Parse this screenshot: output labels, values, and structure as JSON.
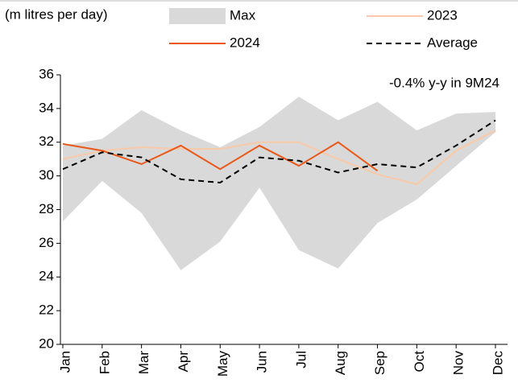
{
  "chart_data": {
    "type": "line",
    "unit_label": "(m litres per day)",
    "annotation": "-0.4% y-y in 9M24",
    "categories": [
      "Jan",
      "Feb",
      "Mar",
      "Apr",
      "May",
      "Jun",
      "Jul",
      "Aug",
      "Sep",
      "Oct",
      "Nov",
      "Dec"
    ],
    "ylim": [
      20,
      36
    ],
    "yticks": [
      20,
      22,
      24,
      26,
      28,
      30,
      32,
      34,
      36
    ],
    "band": {
      "name": "Max",
      "color": "#d9d9d9",
      "values": [
        31.8,
        32.2,
        33.9,
        32.7,
        31.7,
        32.9,
        34.7,
        33.3,
        34.4,
        32.7,
        33.7,
        33.8
      ],
      "low": [
        27.3,
        29.7,
        27.8,
        24.4,
        26.1,
        29.3,
        25.6,
        24.5,
        27.2,
        28.6,
        30.6,
        32.6
      ]
    },
    "series": [
      {
        "name": "2023",
        "color": "#f9c9a8",
        "dash": false,
        "values": [
          31.0,
          31.5,
          31.7,
          31.6,
          31.6,
          32.0,
          32.0,
          31.0,
          30.1,
          29.5,
          31.5,
          32.7
        ]
      },
      {
        "name": "2024",
        "color": "#e8591a",
        "dash": false,
        "values": [
          31.9,
          31.5,
          30.7,
          31.8,
          30.4,
          31.8,
          30.6,
          32.0,
          30.3,
          null,
          null,
          null
        ]
      },
      {
        "name": "Average",
        "color": "#000000",
        "dash": true,
        "values": [
          30.4,
          31.4,
          31.1,
          29.8,
          29.6,
          31.1,
          30.9,
          30.2,
          30.7,
          30.5,
          31.8,
          33.3
        ]
      }
    ]
  }
}
